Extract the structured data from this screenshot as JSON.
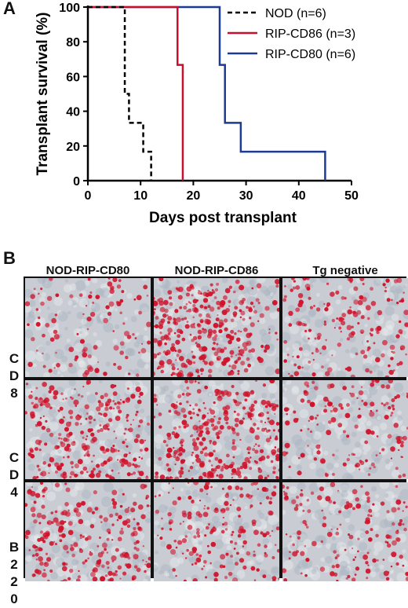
{
  "panel_a_label": "A",
  "panel_b_label": "B",
  "chart_data": {
    "type": "line",
    "step": true,
    "xlabel": "Days post transplant",
    "ylabel": "Transplant survival (%)",
    "xlim": [
      0,
      50
    ],
    "ylim": [
      0,
      100
    ],
    "xticks": [
      0,
      10,
      20,
      30,
      40,
      50
    ],
    "yticks": [
      0,
      20,
      40,
      60,
      80,
      100
    ],
    "grid": false,
    "legend_position": "top-right",
    "series": [
      {
        "name": "NOD (n=6)",
        "color": "#000000",
        "dash": "dashed",
        "x": [
          0,
          7,
          7.8,
          10.5,
          11.5,
          12
        ],
        "y": [
          100,
          50,
          33.3,
          16.7,
          16.7,
          0
        ]
      },
      {
        "name": "RIP-CD86 (n=3)",
        "color": "#c8102e",
        "dash": "solid",
        "x": [
          0,
          17,
          18
        ],
        "y": [
          100,
          66.7,
          0
        ]
      },
      {
        "name": "RIP-CD80 (n=6)",
        "color": "#1f3a93",
        "dash": "solid",
        "x": [
          0,
          25,
          26,
          29,
          45
        ],
        "y": [
          100,
          66.7,
          33.3,
          16.7,
          0
        ]
      }
    ]
  },
  "panel_b": {
    "columns": [
      "NOD-RIP-CD80",
      "NOD-RIP-CD86",
      "Tg negative"
    ],
    "rows": [
      {
        "letters": [
          "C",
          "D",
          "8"
        ],
        "stain_density": [
          0.15,
          0.75,
          0.3
        ]
      },
      {
        "letters": [
          "C",
          "D",
          "4"
        ],
        "stain_density": [
          0.55,
          0.7,
          0.25
        ]
      },
      {
        "letters": [
          "B",
          "2",
          "2",
          "0"
        ],
        "stain_density": [
          0.45,
          0.35,
          0.25
        ]
      }
    ],
    "colors": {
      "stain": "#d0142c",
      "tissue": "#c9ccd2",
      "border": "#111111"
    }
  }
}
